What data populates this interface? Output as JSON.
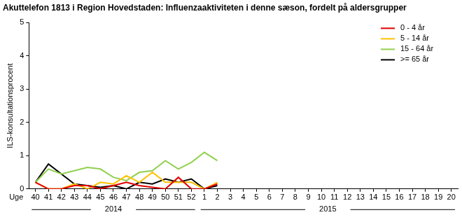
{
  "chart_data": {
    "type": "line",
    "title": "Akuttelefon 1813 i Region Hovedstaden: Influenzaaktiviteten i denne sæson, fordelt på aldersgrupper",
    "y_label": "ILS-konsultationsprocent",
    "x_label": "Uge",
    "categories": [
      "40",
      "41",
      "42",
      "43",
      "44",
      "45",
      "46",
      "47",
      "48",
      "49",
      "50",
      "51",
      "52",
      "1",
      "2",
      "3",
      "4",
      "5",
      "6",
      "7",
      "8",
      "9",
      "10",
      "11",
      "12",
      "13",
      "14",
      "15",
      "16",
      "17",
      "18",
      "19",
      "20"
    ],
    "x_groups": [
      {
        "label": "2014",
        "from": "40",
        "to": "52"
      },
      {
        "label": "2015",
        "from": "1",
        "to": "20"
      }
    ],
    "series": [
      {
        "name": "0 - 4 år",
        "color": "#e00000",
        "values": [
          0.2,
          0,
          0,
          0.1,
          0.1,
          0,
          0.1,
          0.2,
          0.1,
          0.05,
          0,
          0.35,
          0,
          0,
          0.15,
          null,
          null,
          null,
          null,
          null,
          null,
          null,
          null,
          null,
          null,
          null,
          null,
          null,
          null,
          null,
          null,
          null,
          null
        ]
      },
      {
        "name": "5 - 14 år",
        "color": "#ffc000",
        "values": [
          0.2,
          0,
          0,
          0.15,
          0,
          0.2,
          0.15,
          0.4,
          0.2,
          0.5,
          0.2,
          0.2,
          0.2,
          0,
          0.2,
          null,
          null,
          null,
          null,
          null,
          null,
          null,
          null,
          null,
          null,
          null,
          null,
          null,
          null,
          null,
          null,
          null,
          null
        ]
      },
      {
        "name": "15 - 64 år",
        "color": "#92d050",
        "values": [
          0.2,
          0.6,
          0.45,
          0.55,
          0.65,
          0.6,
          0.35,
          0.25,
          0.5,
          0.55,
          0.85,
          0.6,
          0.8,
          1.1,
          0.85,
          null,
          null,
          null,
          null,
          null,
          null,
          null,
          null,
          null,
          null,
          null,
          null,
          null,
          null,
          null,
          null,
          null,
          null
        ]
      },
      {
        "name": ">= 65 år",
        "color": "#000000",
        "values": [
          0.2,
          0.75,
          0.45,
          0.15,
          0.1,
          0.05,
          0.1,
          0,
          0.2,
          0.15,
          0.3,
          0.2,
          0.3,
          0,
          0.1,
          null,
          null,
          null,
          null,
          null,
          null,
          null,
          null,
          null,
          null,
          null,
          null,
          null,
          null,
          null,
          null,
          null,
          null
        ]
      }
    ],
    "ylim": [
      0,
      5
    ],
    "yticks": [
      0,
      1,
      2,
      3,
      4,
      5
    ],
    "grid": false,
    "legend": "top-right",
    "marker": "none",
    "line_style": "solid"
  }
}
